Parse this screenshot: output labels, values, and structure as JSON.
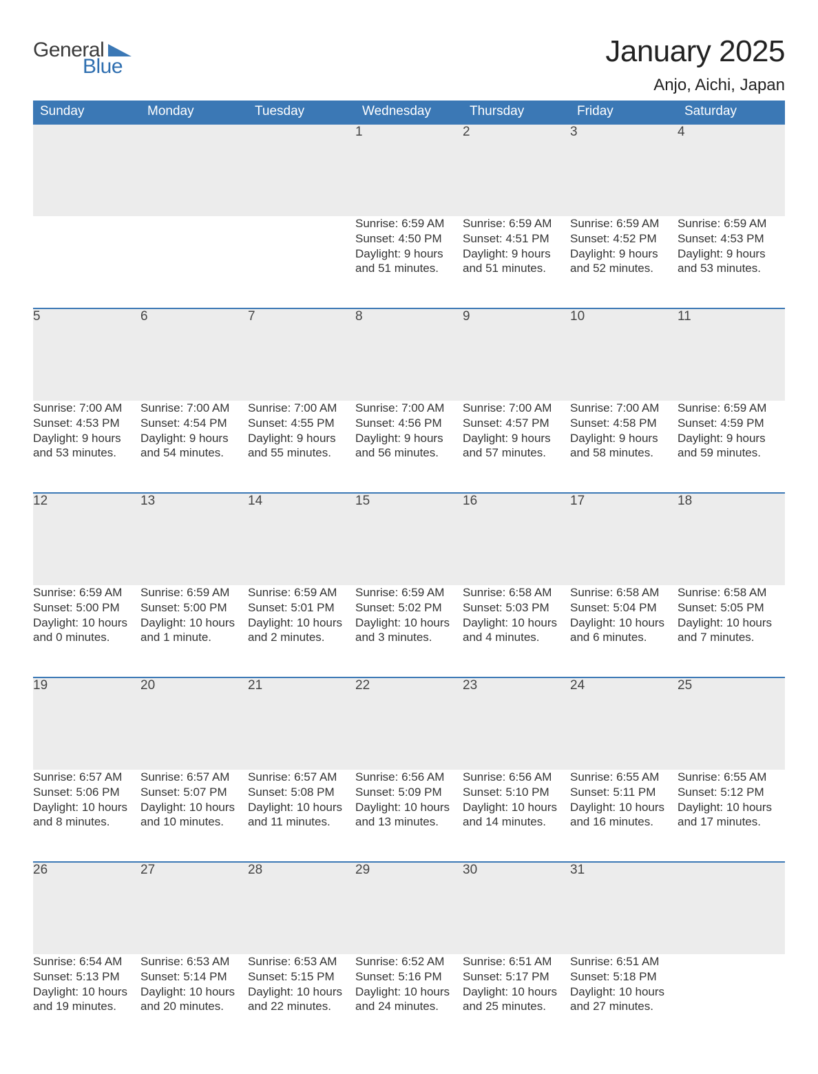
{
  "logo": {
    "general": "General",
    "blue": "Blue",
    "triangle_color": "#3b78b5"
  },
  "title": "January 2025",
  "location": "Anjo, Aichi, Japan",
  "colors": {
    "header_bg": "#3b78b5",
    "header_text": "#ffffff",
    "daynum_bg": "#ececec",
    "daynum_border": "#3b78b5",
    "body_text": "#333333",
    "page_bg": "#ffffff"
  },
  "day_headers": [
    "Sunday",
    "Monday",
    "Tuesday",
    "Wednesday",
    "Thursday",
    "Friday",
    "Saturday"
  ],
  "weeks": [
    [
      null,
      null,
      null,
      {
        "n": "1",
        "sr": "6:59 AM",
        "ss": "4:50 PM",
        "dl": "9 hours and 51 minutes."
      },
      {
        "n": "2",
        "sr": "6:59 AM",
        "ss": "4:51 PM",
        "dl": "9 hours and 51 minutes."
      },
      {
        "n": "3",
        "sr": "6:59 AM",
        "ss": "4:52 PM",
        "dl": "9 hours and 52 minutes."
      },
      {
        "n": "4",
        "sr": "6:59 AM",
        "ss": "4:53 PM",
        "dl": "9 hours and 53 minutes."
      }
    ],
    [
      {
        "n": "5",
        "sr": "7:00 AM",
        "ss": "4:53 PM",
        "dl": "9 hours and 53 minutes."
      },
      {
        "n": "6",
        "sr": "7:00 AM",
        "ss": "4:54 PM",
        "dl": "9 hours and 54 minutes."
      },
      {
        "n": "7",
        "sr": "7:00 AM",
        "ss": "4:55 PM",
        "dl": "9 hours and 55 minutes."
      },
      {
        "n": "8",
        "sr": "7:00 AM",
        "ss": "4:56 PM",
        "dl": "9 hours and 56 minutes."
      },
      {
        "n": "9",
        "sr": "7:00 AM",
        "ss": "4:57 PM",
        "dl": "9 hours and 57 minutes."
      },
      {
        "n": "10",
        "sr": "7:00 AM",
        "ss": "4:58 PM",
        "dl": "9 hours and 58 minutes."
      },
      {
        "n": "11",
        "sr": "6:59 AM",
        "ss": "4:59 PM",
        "dl": "9 hours and 59 minutes."
      }
    ],
    [
      {
        "n": "12",
        "sr": "6:59 AM",
        "ss": "5:00 PM",
        "dl": "10 hours and 0 minutes."
      },
      {
        "n": "13",
        "sr": "6:59 AM",
        "ss": "5:00 PM",
        "dl": "10 hours and 1 minute."
      },
      {
        "n": "14",
        "sr": "6:59 AM",
        "ss": "5:01 PM",
        "dl": "10 hours and 2 minutes."
      },
      {
        "n": "15",
        "sr": "6:59 AM",
        "ss": "5:02 PM",
        "dl": "10 hours and 3 minutes."
      },
      {
        "n": "16",
        "sr": "6:58 AM",
        "ss": "5:03 PM",
        "dl": "10 hours and 4 minutes."
      },
      {
        "n": "17",
        "sr": "6:58 AM",
        "ss": "5:04 PM",
        "dl": "10 hours and 6 minutes."
      },
      {
        "n": "18",
        "sr": "6:58 AM",
        "ss": "5:05 PM",
        "dl": "10 hours and 7 minutes."
      }
    ],
    [
      {
        "n": "19",
        "sr": "6:57 AM",
        "ss": "5:06 PM",
        "dl": "10 hours and 8 minutes."
      },
      {
        "n": "20",
        "sr": "6:57 AM",
        "ss": "5:07 PM",
        "dl": "10 hours and 10 minutes."
      },
      {
        "n": "21",
        "sr": "6:57 AM",
        "ss": "5:08 PM",
        "dl": "10 hours and 11 minutes."
      },
      {
        "n": "22",
        "sr": "6:56 AM",
        "ss": "5:09 PM",
        "dl": "10 hours and 13 minutes."
      },
      {
        "n": "23",
        "sr": "6:56 AM",
        "ss": "5:10 PM",
        "dl": "10 hours and 14 minutes."
      },
      {
        "n": "24",
        "sr": "6:55 AM",
        "ss": "5:11 PM",
        "dl": "10 hours and 16 minutes."
      },
      {
        "n": "25",
        "sr": "6:55 AM",
        "ss": "5:12 PM",
        "dl": "10 hours and 17 minutes."
      }
    ],
    [
      {
        "n": "26",
        "sr": "6:54 AM",
        "ss": "5:13 PM",
        "dl": "10 hours and 19 minutes."
      },
      {
        "n": "27",
        "sr": "6:53 AM",
        "ss": "5:14 PM",
        "dl": "10 hours and 20 minutes."
      },
      {
        "n": "28",
        "sr": "6:53 AM",
        "ss": "5:15 PM",
        "dl": "10 hours and 22 minutes."
      },
      {
        "n": "29",
        "sr": "6:52 AM",
        "ss": "5:16 PM",
        "dl": "10 hours and 24 minutes."
      },
      {
        "n": "30",
        "sr": "6:51 AM",
        "ss": "5:17 PM",
        "dl": "10 hours and 25 minutes."
      },
      {
        "n": "31",
        "sr": "6:51 AM",
        "ss": "5:18 PM",
        "dl": "10 hours and 27 minutes."
      },
      null
    ]
  ],
  "labels": {
    "sunrise": "Sunrise: ",
    "sunset": "Sunset: ",
    "daylight": "Daylight: "
  }
}
